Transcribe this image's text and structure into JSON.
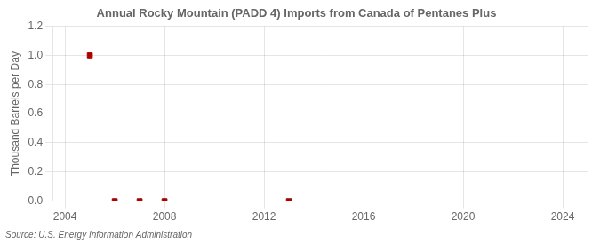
{
  "chart_data": {
    "type": "scatter",
    "title": "Annual Rocky Mountain (PADD 4) Imports from Canada of Pentanes Plus",
    "ylabel": "Thousand Barrels per Day",
    "source": "Source: U.S. Energy Information Administration",
    "x": [
      2005,
      2006,
      2007,
      2008,
      2013
    ],
    "values": [
      1.0,
      0.0,
      0.0,
      0.0,
      0.0
    ],
    "color": "#aa0000",
    "marker": "square",
    "xlim": [
      2003.5,
      2025
    ],
    "xticks": [
      2004,
      2008,
      2012,
      2016,
      2020,
      2024
    ],
    "ylim": [
      0.0,
      1.2
    ],
    "yticks": [
      {
        "value": 0.0,
        "label": "0.0"
      },
      0.2,
      0.4,
      0.6,
      0.8,
      {
        "value": 1.0,
        "label": "1.0"
      },
      1.2
    ],
    "grid": true
  }
}
